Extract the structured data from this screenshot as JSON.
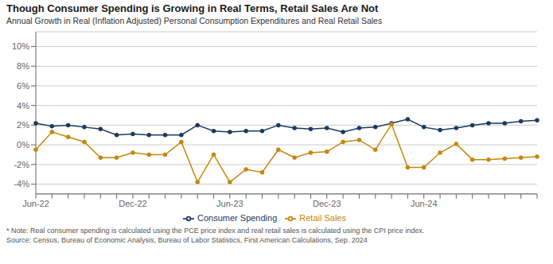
{
  "chart_data": {
    "type": "line",
    "title": "Though Consumer Spending is Growing in Real Terms, Retail Sales Are Not",
    "subtitle": "Annual Growth in Real (Inflation Adjusted) Personal Consumption Expenditures and Real Retail Sales",
    "footnote": "* Note: Real consumer spending is calculated using the PCE price index and real retail sales is calculated using the CPI price index.\nSource: Census, Bureau of Economic Analysis, Bureau of Labor Statistics, First American Calculations, Sep. 2024",
    "categories": [
      "Jun-22",
      null,
      null,
      null,
      null,
      null,
      "Dec-22",
      null,
      null,
      null,
      null,
      null,
      "Jun-23",
      null,
      null,
      null,
      null,
      null,
      "Dec-23",
      null,
      null,
      null,
      null,
      null,
      "Jun-24",
      null,
      null,
      null,
      null,
      null,
      null,
      null
    ],
    "series": [
      {
        "name": "Consumer Spending",
        "color": "#1c3a5e",
        "marker": "circle",
        "values": [
          0.022,
          0.019,
          0.02,
          0.018,
          0.016,
          0.01,
          0.011,
          0.01,
          0.01,
          0.01,
          0.02,
          0.014,
          0.013,
          0.014,
          0.014,
          0.02,
          0.017,
          0.016,
          0.017,
          0.013,
          0.017,
          0.018,
          0.022,
          0.026,
          0.018,
          0.015,
          0.017,
          0.02,
          0.022,
          0.022,
          0.024,
          0.025
        ]
      },
      {
        "name": "Retail Sales",
        "color": "#c8860a",
        "marker": "circle",
        "values": [
          -0.005,
          0.013,
          0.008,
          0.003,
          -0.013,
          -0.013,
          -0.008,
          -0.01,
          -0.01,
          0.003,
          -0.038,
          -0.01,
          -0.038,
          -0.025,
          -0.028,
          -0.005,
          -0.013,
          -0.008,
          -0.007,
          0.003,
          0.005,
          -0.005,
          0.021,
          -0.023,
          -0.023,
          -0.008,
          0.001,
          -0.015,
          -0.015,
          -0.014,
          -0.013,
          -0.012
        ]
      }
    ],
    "ylim": [
      -0.05,
      0.115
    ],
    "yticks": [
      {
        "value": -0.04,
        "label": "-4%"
      },
      {
        "value": -0.02,
        "label": "-2%"
      },
      {
        "value": 0.0,
        "label": "0%"
      },
      {
        "value": 0.02,
        "label": "2%"
      },
      {
        "value": 0.04,
        "label": "4%"
      },
      {
        "value": 0.06,
        "label": "6%"
      },
      {
        "value": 0.08,
        "label": "8%"
      },
      {
        "value": 0.1,
        "label": "10%"
      }
    ],
    "grid": true
  }
}
